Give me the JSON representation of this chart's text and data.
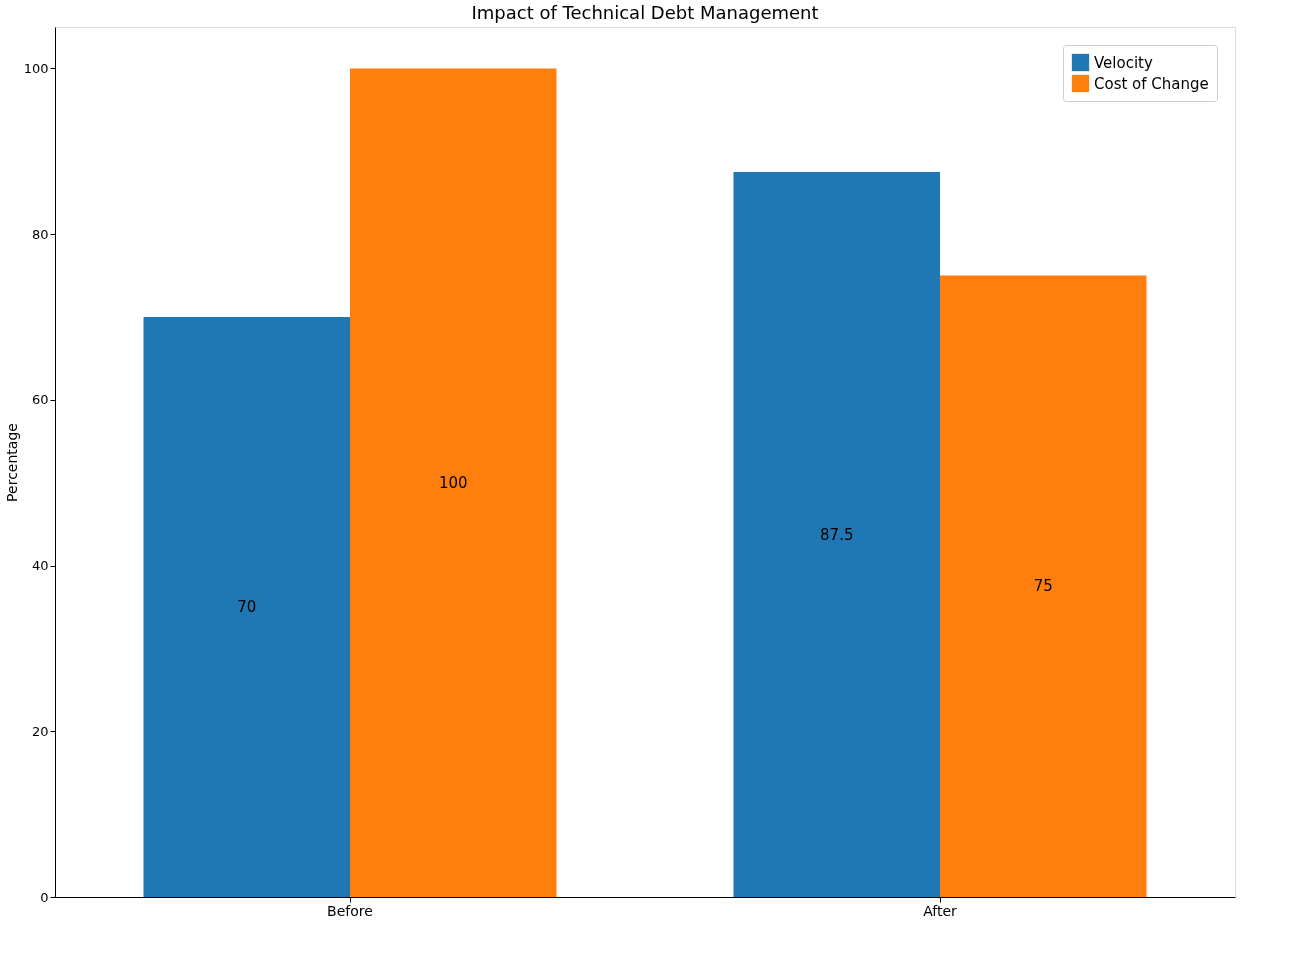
{
  "chart_data": {
    "type": "bar",
    "title": "Impact of Technical Debt Management",
    "ylabel": "Percentage",
    "categories": [
      "Before",
      "After"
    ],
    "series": [
      {
        "name": "Velocity",
        "color": "#1f77b4",
        "values": [
          70,
          87.5
        ]
      },
      {
        "name": "Cost of Change",
        "color": "#ff7f0e",
        "values": [
          100,
          75
        ]
      }
    ],
    "ylim": [
      0,
      105
    ],
    "yticks": [
      0,
      20,
      40,
      60,
      80,
      100
    ],
    "grid": false,
    "legend": "top right",
    "data_labels": true
  }
}
